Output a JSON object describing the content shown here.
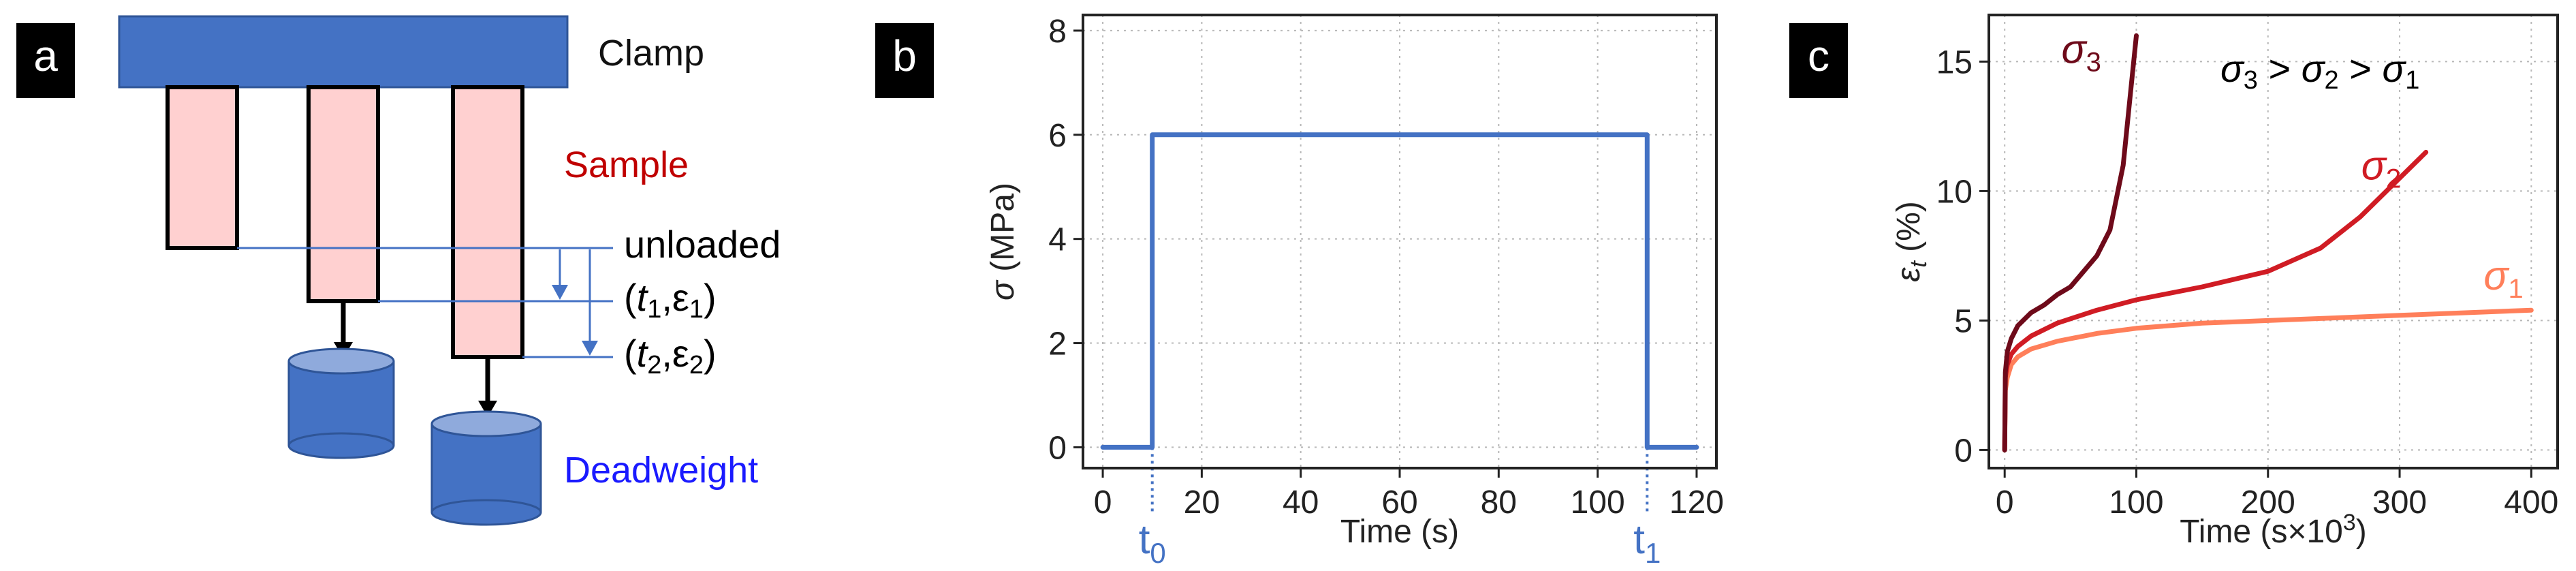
{
  "panel_labels": [
    "a",
    "b",
    "c"
  ],
  "diagram": {
    "clamp_label": "Clamp",
    "sample_label": "Sample",
    "deadweight_label": "Deadweight",
    "state_unloaded": "unloaded",
    "state_1": "(t1,ε1)",
    "state_2": "(t2,ε2)",
    "colors": {
      "clamp": "#4472c4",
      "sample": "#ffd0d0",
      "sample_text": "#c00000",
      "deadweight_text": "#1a1aff",
      "guide": "#4472c4"
    }
  },
  "chart_data": [
    {
      "type": "line",
      "xlabel": "Time (s)",
      "ylabel": "σ (MPa)",
      "xlim": [
        -4,
        124
      ],
      "ylim": [
        -0.4,
        8.3
      ],
      "xticks": [
        0,
        20,
        40,
        60,
        80,
        100,
        120
      ],
      "yticks": [
        0,
        2,
        4,
        6,
        8
      ],
      "grid": true,
      "series": [
        {
          "color": "#4472c4",
          "x": [
            0,
            10,
            10,
            110,
            110,
            120
          ],
          "y": [
            0,
            0,
            6,
            6,
            0,
            0
          ]
        }
      ],
      "markers": [
        {
          "label": "t0",
          "x": 10
        },
        {
          "label": "t1",
          "x": 110
        }
      ]
    },
    {
      "type": "line",
      "xlabel": "Time (s×10³)",
      "ylabel": "εt (%)",
      "xlim": [
        -12,
        420
      ],
      "ylim": [
        -0.7,
        16.8
      ],
      "xticks": [
        0,
        100,
        200,
        300,
        400
      ],
      "yticks": [
        0,
        5,
        10,
        15
      ],
      "grid": true,
      "annotation": "σ3 > σ2 > σ1",
      "series": [
        {
          "name": "σ1",
          "color": "#ff7f5a",
          "x": [
            0,
            0.5,
            2,
            5,
            10,
            20,
            40,
            70,
            100,
            150,
            200,
            250,
            300,
            350,
            400
          ],
          "y": [
            0,
            2.3,
            2.8,
            3.3,
            3.6,
            3.9,
            4.2,
            4.5,
            4.7,
            4.9,
            5.0,
            5.1,
            5.2,
            5.3,
            5.4
          ]
        },
        {
          "name": "σ2",
          "color": "#d01c24",
          "x": [
            0,
            0.5,
            2,
            5,
            10,
            20,
            40,
            70,
            100,
            150,
            200,
            240,
            270,
            300,
            320
          ],
          "y": [
            0,
            2.8,
            3.3,
            3.7,
            4.0,
            4.4,
            4.9,
            5.4,
            5.8,
            6.3,
            6.9,
            7.8,
            9.0,
            10.5,
            11.5
          ]
        },
        {
          "name": "σ3",
          "color": "#6e0a1a",
          "x": [
            0,
            0.5,
            2,
            5,
            10,
            20,
            30,
            40,
            50,
            60,
            70,
            80,
            90,
            95,
            100
          ],
          "y": [
            0,
            3.0,
            3.8,
            4.3,
            4.8,
            5.3,
            5.6,
            6.0,
            6.3,
            6.9,
            7.5,
            8.5,
            11.0,
            13.5,
            16.0
          ]
        }
      ]
    }
  ]
}
